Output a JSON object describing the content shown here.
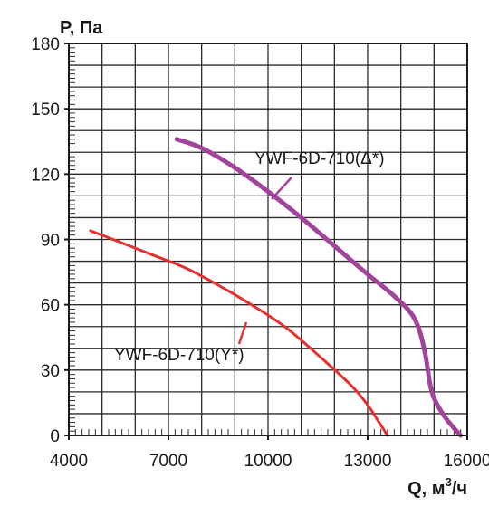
{
  "chart_data": {
    "type": "line",
    "title": "",
    "ylabel": "P, Па",
    "xlabel_main": "Q, м",
    "xlabel_sup": "3",
    "xlabel_tail": "/ч",
    "xlim": [
      4000,
      16000
    ],
    "ylim": [
      0,
      180
    ],
    "x_ticks": [
      4000,
      7000,
      10000,
      13000,
      16000
    ],
    "x_tick_labels": [
      "4000",
      "7000",
      "10000",
      "13000",
      "16000"
    ],
    "y_ticks": [
      0,
      30,
      60,
      90,
      120,
      150,
      180
    ],
    "y_tick_labels": [
      "0",
      "30",
      "60",
      "90",
      "120",
      "150",
      "180"
    ],
    "grid": true,
    "series": [
      {
        "name": "YWF-6D-710(Δ*)",
        "color": "#a2449c",
        "x": [
          7250,
          8000,
          9000,
          10000,
          11000,
          12000,
          13000,
          13800,
          14400,
          14700,
          14900,
          15100,
          15400,
          15800
        ],
        "y": [
          136,
          132,
          123,
          112,
          100,
          87,
          74,
          64,
          54,
          40,
          22,
          14,
          7,
          0
        ]
      },
      {
        "name": "YWF-6D-710(Y*)",
        "color": "#e53030",
        "x": [
          4650,
          5500,
          6500,
          7500,
          8500,
          9500,
          10500,
          11500,
          12500,
          13000,
          13300,
          13600
        ],
        "y": [
          94,
          89,
          83,
          77,
          69,
          60,
          50,
          37,
          23,
          14,
          7,
          0
        ]
      }
    ]
  }
}
